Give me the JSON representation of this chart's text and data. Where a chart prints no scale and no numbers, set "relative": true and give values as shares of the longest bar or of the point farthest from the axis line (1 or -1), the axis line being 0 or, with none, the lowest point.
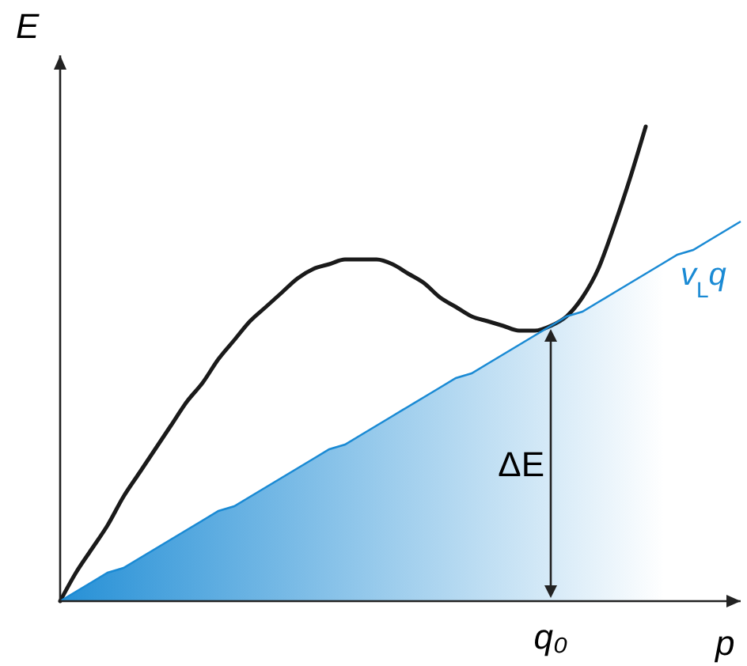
{
  "chart_data": {
    "type": "line",
    "relative": true,
    "xlabel": "p",
    "ylabel": "E",
    "legend": false,
    "categories": [
      null,
      null,
      null,
      null,
      null,
      null,
      null,
      null,
      null,
      null,
      null,
      null,
      null,
      null,
      null,
      null,
      null,
      null,
      null,
      null,
      null,
      null,
      null,
      null,
      null,
      null,
      null,
      null,
      null,
      null,
      null,
      null,
      null,
      null,
      null,
      null,
      null,
      null,
      null,
      null,
      null,
      null,
      null,
      null
    ],
    "series": [
      {
        "color": "#1a1a1a",
        "values": [
          0,
          0.06,
          0.11,
          0.16,
          0.22,
          0.27,
          0.32,
          0.37,
          0.42,
          0.46,
          0.51,
          0.55,
          0.59,
          0.62,
          0.65,
          0.68,
          0.7,
          0.71,
          0.72,
          0.72,
          0.72,
          0.71,
          0.69,
          0.67,
          0.64,
          0.62,
          0.6,
          0.59,
          0.58,
          0.57,
          0.57,
          0.58,
          0.6,
          0.64,
          0.7,
          0.79,
          0.89,
          1.0,
          null,
          null,
          null,
          null,
          null,
          null
        ]
      },
      {
        "type": "area",
        "name": "v$_{L}$q",
        "color": "#1a8ad4",
        "values": [
          0,
          0.02,
          0.04,
          0.06,
          0.07,
          0.09,
          0.11,
          0.13,
          0.15,
          0.17,
          0.19,
          0.2,
          0.22,
          0.24,
          0.26,
          0.28,
          0.3,
          0.32,
          0.33,
          0.35,
          0.37,
          0.39,
          0.41,
          0.43,
          0.45,
          0.47,
          0.48,
          0.5,
          0.52,
          0.54,
          0.56,
          0.58,
          0.6,
          0.61,
          0.63,
          0.65,
          0.67,
          0.69,
          0.71,
          0.73,
          0.74,
          0.76,
          0.78,
          0.8
        ]
      }
    ],
    "annotations": [
      "ΔE",
      "q₀"
    ]
  }
}
